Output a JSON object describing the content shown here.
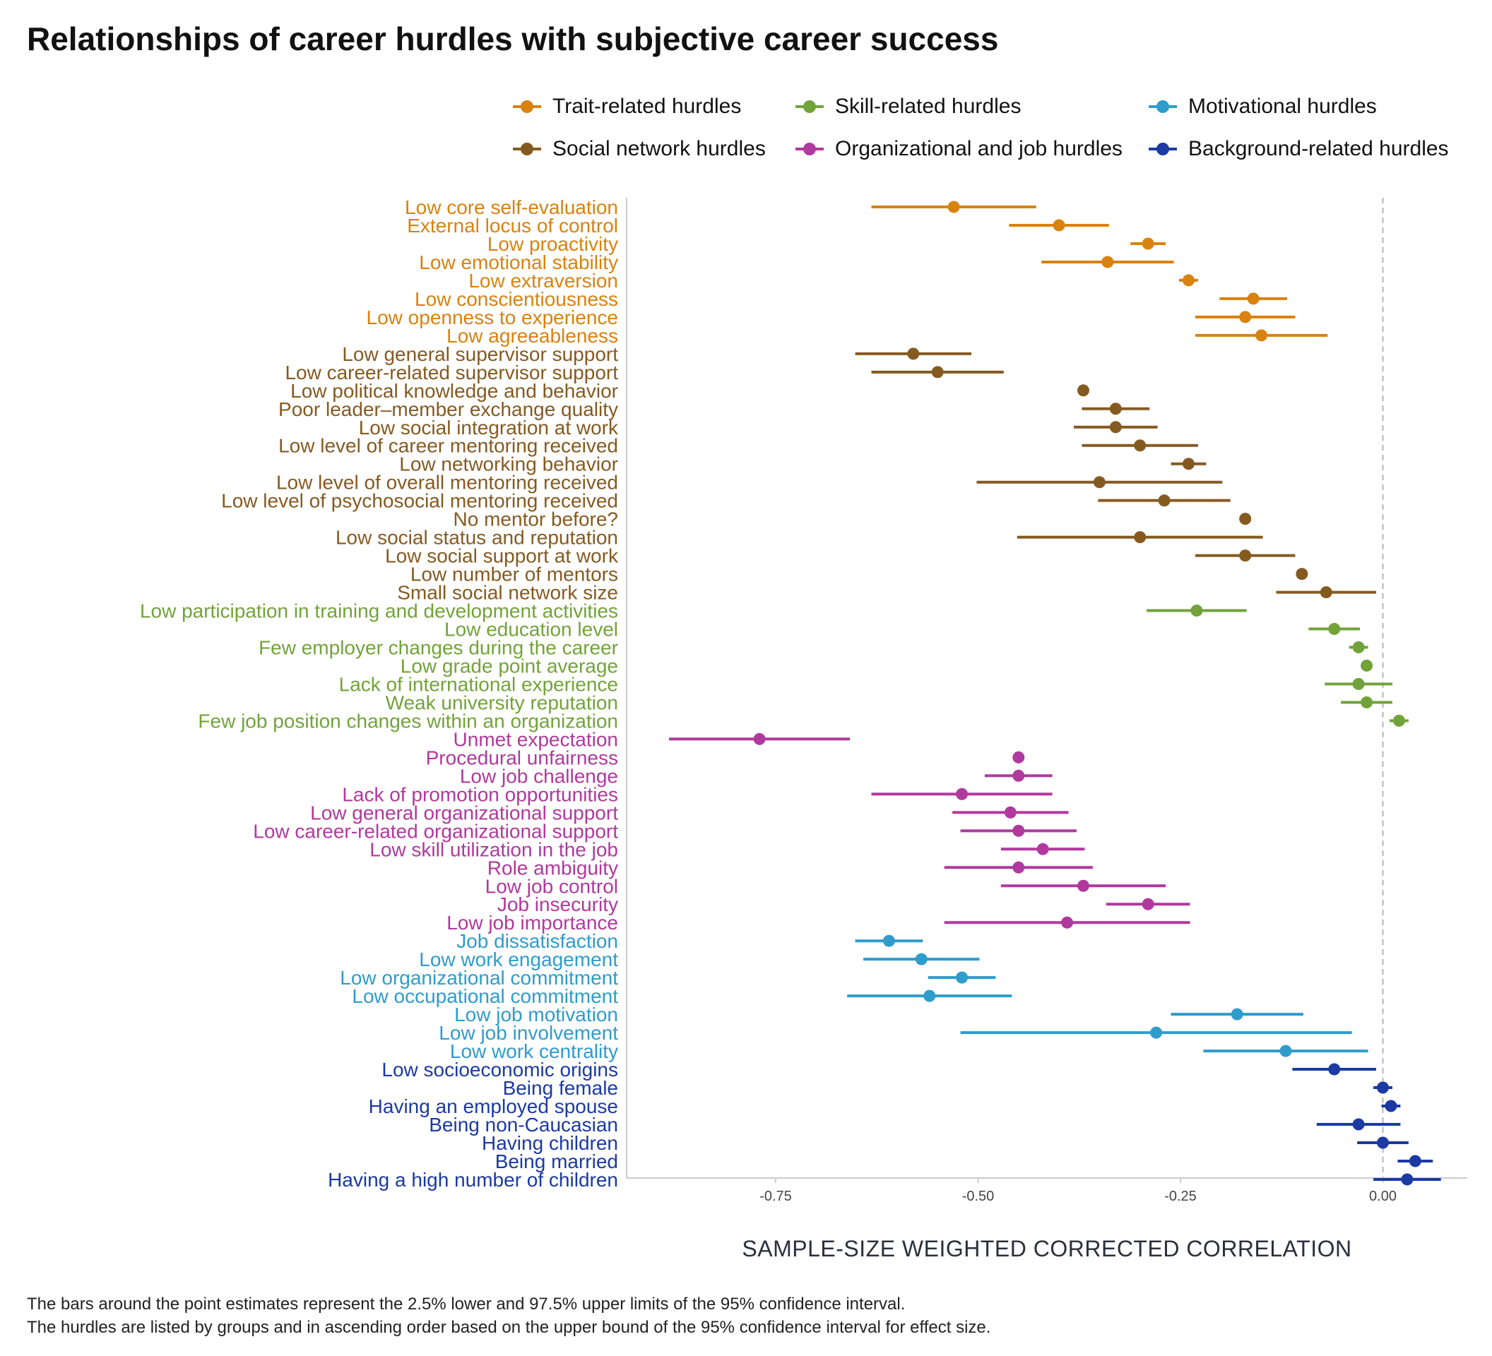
{
  "title": "Relationships of career hurdles with subjective career success",
  "caption": [
    "The bars around the point estimates represent the 2.5% lower and 97.5% upper limits of the 95% confidence interval.",
    "The hurdles are listed by groups and in ascending order based on the upper bound of the 95% confidence interval for effect size."
  ],
  "chart_data": {
    "type": "forest",
    "xlabel": "SAMPLE-SIZE WEIGHTED CORRECTED CORRELATION",
    "ylabel": "",
    "xlim": [
      -0.94,
      0.12
    ],
    "xticks": [
      -0.75,
      -0.5,
      -0.25,
      0.0
    ],
    "xtick_labels": [
      "-0.75",
      "-0.50",
      "-0.25",
      "0.00"
    ],
    "reference_line": 0,
    "grid": false,
    "legend_position": "top",
    "groups": [
      {
        "name": "Trait-related hurdles",
        "color": "#d9820f",
        "items": [
          {
            "label": "Low core self-evaluation",
            "estimate": -0.53,
            "lower": -0.63,
            "upper": -0.43
          },
          {
            "label": "External locus of control",
            "estimate": -0.4,
            "lower": -0.46,
            "upper": -0.34
          },
          {
            "label": "Low proactivity",
            "estimate": -0.29,
            "lower": -0.31,
            "upper": -0.27
          },
          {
            "label": "Low emotional stability",
            "estimate": -0.34,
            "lower": -0.42,
            "upper": -0.26
          },
          {
            "label": "Low extraversion",
            "estimate": -0.24,
            "lower": -0.25,
            "upper": -0.23
          },
          {
            "label": "Low conscientiousness",
            "estimate": -0.16,
            "lower": -0.2,
            "upper": -0.12
          },
          {
            "label": "Low openness to experience",
            "estimate": -0.17,
            "lower": -0.23,
            "upper": -0.11
          },
          {
            "label": "Low agreeableness",
            "estimate": -0.15,
            "lower": -0.23,
            "upper": -0.07
          }
        ]
      },
      {
        "name": "Social network hurdles",
        "color": "#855a21",
        "items": [
          {
            "label": "Low general supervisor support",
            "estimate": -0.58,
            "lower": -0.65,
            "upper": -0.51
          },
          {
            "label": "Low career-related supervisor support",
            "estimate": -0.55,
            "lower": -0.63,
            "upper": -0.47
          },
          {
            "label": "Low political knowledge and behavior",
            "estimate": -0.37,
            "lower": -0.37,
            "upper": -0.37
          },
          {
            "label": "Poor leader–member exchange quality",
            "estimate": -0.33,
            "lower": -0.37,
            "upper": -0.29
          },
          {
            "label": "Low social integration at work",
            "estimate": -0.33,
            "lower": -0.38,
            "upper": -0.28
          },
          {
            "label": "Low level of career mentoring received",
            "estimate": -0.3,
            "lower": -0.37,
            "upper": -0.23
          },
          {
            "label": "Low networking behavior",
            "estimate": -0.24,
            "lower": -0.26,
            "upper": -0.22
          },
          {
            "label": "Low level of overall mentoring received",
            "estimate": -0.35,
            "lower": -0.5,
            "upper": -0.2
          },
          {
            "label": "Low level of psychosocial mentoring received",
            "estimate": -0.27,
            "lower": -0.35,
            "upper": -0.19
          },
          {
            "label": "No mentor before?",
            "estimate": -0.17,
            "lower": -0.17,
            "upper": -0.17
          },
          {
            "label": "Low social status and reputation",
            "estimate": -0.3,
            "lower": -0.45,
            "upper": -0.15
          },
          {
            "label": "Low social support at work",
            "estimate": -0.17,
            "lower": -0.23,
            "upper": -0.11
          },
          {
            "label": "Low number of mentors",
            "estimate": -0.1,
            "lower": -0.1,
            "upper": -0.1
          },
          {
            "label": "Small social network size",
            "estimate": -0.07,
            "lower": -0.13,
            "upper": -0.01
          }
        ]
      },
      {
        "name": "Skill-related hurdles",
        "color": "#72a33a",
        "items": [
          {
            "label": "Low participation in training and development activities",
            "estimate": -0.23,
            "lower": -0.29,
            "upper": -0.17
          },
          {
            "label": "Low education level",
            "estimate": -0.06,
            "lower": -0.09,
            "upper": -0.03
          },
          {
            "label": "Few employer changes during the career",
            "estimate": -0.03,
            "lower": -0.04,
            "upper": -0.02
          },
          {
            "label": "Low grade point average",
            "estimate": -0.02,
            "lower": -0.02,
            "upper": -0.02
          },
          {
            "label": "Lack of international experience",
            "estimate": -0.03,
            "lower": -0.07,
            "upper": 0.01
          },
          {
            "label": "Weak university reputation",
            "estimate": -0.02,
            "lower": -0.05,
            "upper": 0.01
          },
          {
            "label": "Few job position changes within an organization",
            "estimate": 0.02,
            "lower": 0.01,
            "upper": 0.03
          }
        ]
      },
      {
        "name": "Organizational and job hurdles",
        "color": "#b0399e",
        "items": [
          {
            "label": "Unmet expectation",
            "estimate": -0.77,
            "lower": -0.88,
            "upper": -0.66
          },
          {
            "label": "Procedural unfairness",
            "estimate": -0.45,
            "lower": -0.45,
            "upper": -0.45
          },
          {
            "label": "Low job challenge",
            "estimate": -0.45,
            "lower": -0.49,
            "upper": -0.41
          },
          {
            "label": "Lack of promotion opportunities",
            "estimate": -0.52,
            "lower": -0.63,
            "upper": -0.41
          },
          {
            "label": "Low general organizational support",
            "estimate": -0.46,
            "lower": -0.53,
            "upper": -0.39
          },
          {
            "label": "Low career-related organizational support",
            "estimate": -0.45,
            "lower": -0.52,
            "upper": -0.38
          },
          {
            "label": "Low skill utilization in the job",
            "estimate": -0.42,
            "lower": -0.47,
            "upper": -0.37
          },
          {
            "label": "Role ambiguity",
            "estimate": -0.45,
            "lower": -0.54,
            "upper": -0.36
          },
          {
            "label": "Low job control",
            "estimate": -0.37,
            "lower": -0.47,
            "upper": -0.27
          },
          {
            "label": "Job insecurity",
            "estimate": -0.29,
            "lower": -0.34,
            "upper": -0.24
          },
          {
            "label": "Low job importance",
            "estimate": -0.39,
            "lower": -0.54,
            "upper": -0.24
          }
        ]
      },
      {
        "name": "Motivational hurdles",
        "color": "#2e9ccc",
        "items": [
          {
            "label": "Job dissatisfaction",
            "estimate": -0.61,
            "lower": -0.65,
            "upper": -0.57
          },
          {
            "label": "Low work engagement",
            "estimate": -0.57,
            "lower": -0.64,
            "upper": -0.5
          },
          {
            "label": "Low organizational commitment",
            "estimate": -0.52,
            "lower": -0.56,
            "upper": -0.48
          },
          {
            "label": "Low occupational commitment",
            "estimate": -0.56,
            "lower": -0.66,
            "upper": -0.46
          },
          {
            "label": "Low job motivation",
            "estimate": -0.18,
            "lower": -0.26,
            "upper": -0.1
          },
          {
            "label": "Low job involvement",
            "estimate": -0.28,
            "lower": -0.52,
            "upper": -0.04
          },
          {
            "label": "Low work centrality",
            "estimate": -0.12,
            "lower": -0.22,
            "upper": -0.02
          }
        ]
      },
      {
        "name": "Background-related hurdles",
        "color": "#1b3aa3",
        "items": [
          {
            "label": "Low socioeconomic origins",
            "estimate": -0.06,
            "lower": -0.11,
            "upper": -0.01
          },
          {
            "label": "Being female",
            "estimate": 0.0,
            "lower": -0.01,
            "upper": 0.01
          },
          {
            "label": "Having an employed spouse",
            "estimate": 0.01,
            "lower": 0.0,
            "upper": 0.02
          },
          {
            "label": "Being non-Caucasian",
            "estimate": -0.03,
            "lower": -0.08,
            "upper": 0.02
          },
          {
            "label": "Having children",
            "estimate": 0.0,
            "lower": -0.03,
            "upper": 0.03
          },
          {
            "label": "Being married",
            "estimate": 0.04,
            "lower": 0.02,
            "upper": 0.06
          },
          {
            "label": "Having a high number of children",
            "estimate": 0.03,
            "lower": -0.01,
            "upper": 0.07
          }
        ]
      }
    ],
    "legend_order": [
      "Trait-related hurdles",
      "Skill-related hurdles",
      "Motivational hurdles",
      "Social network hurdles",
      "Organizational and job hurdles",
      "Background-related hurdles"
    ]
  }
}
